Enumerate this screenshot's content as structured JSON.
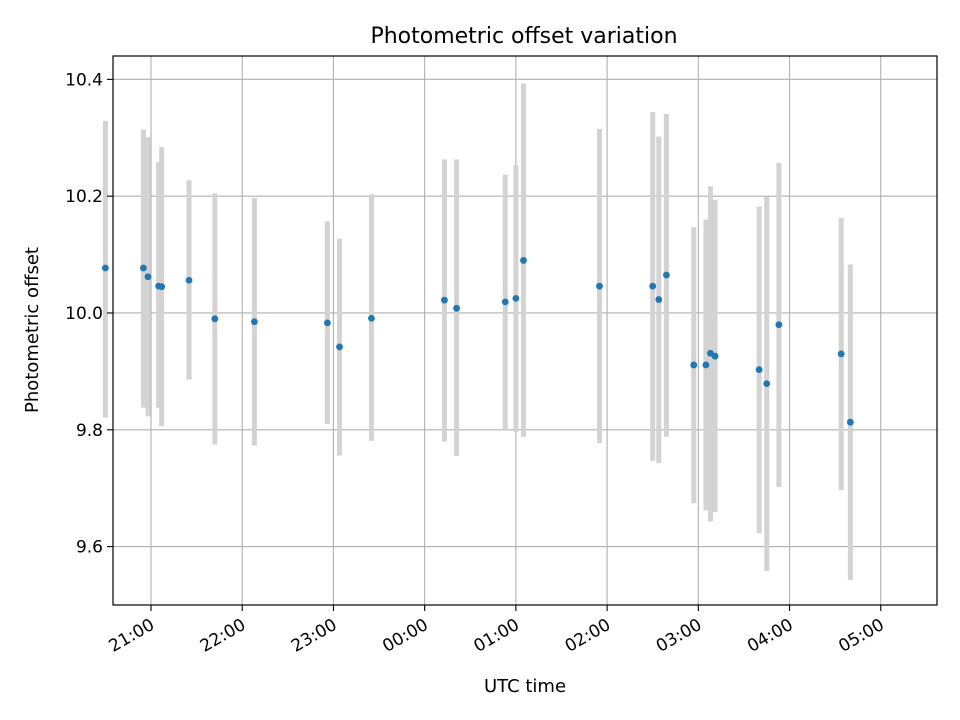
{
  "chart_data": {
    "type": "scatter",
    "title": "Photometric offset variation",
    "xlabel": "UTC time",
    "ylabel": "Photometric offset",
    "x_ticks": [
      "21:00",
      "22:00",
      "23:00",
      "00:00",
      "01:00",
      "02:00",
      "03:00",
      "04:00",
      "05:00"
    ],
    "y_ticks": [
      "9.6",
      "9.8",
      "10.0",
      "10.2",
      "10.4"
    ],
    "xlim": [
      "20:35",
      "05:37"
    ],
    "ylim": [
      9.5,
      10.44
    ],
    "grid": true,
    "colors": {
      "point": "#1f77b4",
      "errorbar": "#d3d3d3",
      "grid": "#b0b0b0"
    },
    "points": [
      {
        "x": "20:30",
        "y": 10.077,
        "err_low": 9.821,
        "err_high": 10.329
      },
      {
        "x": "20:55",
        "y": 10.077,
        "err_low": 9.838,
        "err_high": 10.314
      },
      {
        "x": "20:58",
        "y": 10.062,
        "err_low": 9.823,
        "err_high": 10.301
      },
      {
        "x": "21:05",
        "y": 10.046,
        "err_low": 9.838,
        "err_high": 10.258
      },
      {
        "x": "21:07",
        "y": 10.045,
        "err_low": 9.806,
        "err_high": 10.284
      },
      {
        "x": "21:25",
        "y": 10.056,
        "err_low": 9.886,
        "err_high": 10.227
      },
      {
        "x": "21:42",
        "y": 9.99,
        "err_low": 9.775,
        "err_high": 10.205
      },
      {
        "x": "22:08",
        "y": 9.985,
        "err_low": 9.773,
        "err_high": 10.197
      },
      {
        "x": "22:56",
        "y": 9.983,
        "err_low": 9.81,
        "err_high": 10.157
      },
      {
        "x": "23:04",
        "y": 9.942,
        "err_low": 9.756,
        "err_high": 10.127
      },
      {
        "x": "23:25",
        "y": 9.991,
        "err_low": 9.781,
        "err_high": 10.203
      },
      {
        "x": "00:13",
        "y": 10.022,
        "err_low": 9.78,
        "err_high": 10.263
      },
      {
        "x": "00:21",
        "y": 10.008,
        "err_low": 9.755,
        "err_high": 10.263
      },
      {
        "x": "00:53",
        "y": 10.019,
        "err_low": 9.8,
        "err_high": 10.237
      },
      {
        "x": "01:00",
        "y": 10.025,
        "err_low": 9.796,
        "err_high": 10.253
      },
      {
        "x": "01:05",
        "y": 10.09,
        "err_low": 9.788,
        "err_high": 10.393
      },
      {
        "x": "01:55",
        "y": 10.046,
        "err_low": 9.777,
        "err_high": 10.315
      },
      {
        "x": "02:30",
        "y": 10.046,
        "err_low": 9.747,
        "err_high": 10.344
      },
      {
        "x": "02:34",
        "y": 10.023,
        "err_low": 9.743,
        "err_high": 10.302
      },
      {
        "x": "02:39",
        "y": 10.065,
        "err_low": 9.788,
        "err_high": 10.341
      },
      {
        "x": "02:57",
        "y": 9.911,
        "err_low": 9.674,
        "err_high": 10.147
      },
      {
        "x": "03:05",
        "y": 9.911,
        "err_low": 9.662,
        "err_high": 10.16
      },
      {
        "x": "03:08",
        "y": 9.931,
        "err_low": 9.643,
        "err_high": 10.217
      },
      {
        "x": "03:11",
        "y": 9.926,
        "err_low": 9.659,
        "err_high": 10.194
      },
      {
        "x": "03:40",
        "y": 9.903,
        "err_low": 9.623,
        "err_high": 10.182
      },
      {
        "x": "03:45",
        "y": 9.879,
        "err_low": 9.558,
        "err_high": 10.199
      },
      {
        "x": "03:53",
        "y": 9.98,
        "err_low": 9.702,
        "err_high": 10.257
      },
      {
        "x": "04:34",
        "y": 9.93,
        "err_low": 9.697,
        "err_high": 10.163
      },
      {
        "x": "04:40",
        "y": 9.813,
        "err_low": 9.543,
        "err_high": 10.083
      }
    ]
  }
}
